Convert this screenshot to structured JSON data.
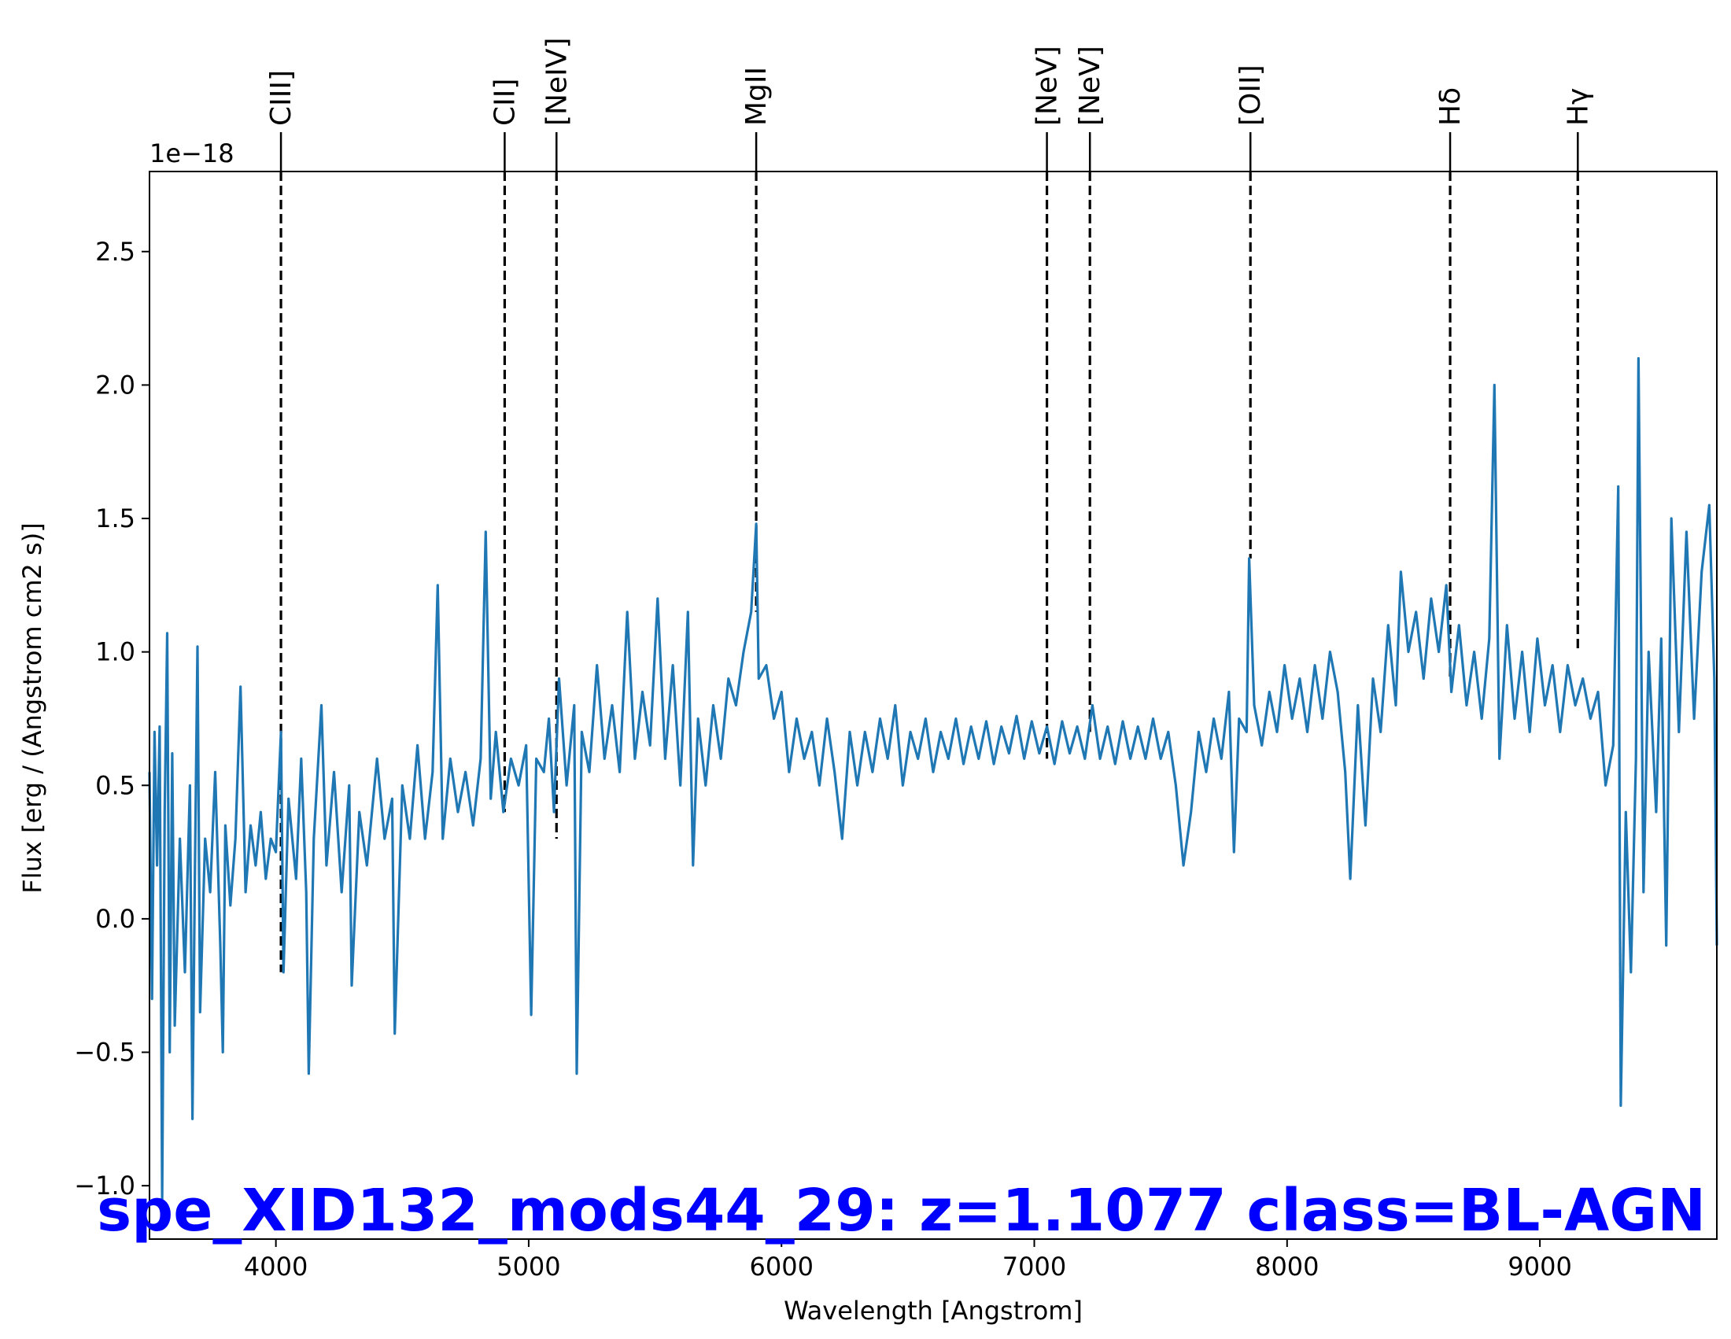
{
  "chart_data": {
    "type": "line",
    "title": "spe_XID132_mods44_29: z=1.1077 class=BL-AGN",
    "title_color": "#0000ff",
    "xlabel": "Wavelength [Angstrom]",
    "ylabel": "Flux [erg / (Angstrom cm2 s)]",
    "y_scale_label": "1e−18",
    "xlim": [
      3500,
      9700
    ],
    "ylim": [
      -1.2,
      2.8
    ],
    "x_ticks": [
      4000,
      5000,
      6000,
      7000,
      8000,
      9000
    ],
    "x_tick_labels": [
      "4000",
      "5000",
      "6000",
      "7000",
      "8000",
      "9000"
    ],
    "y_ticks": [
      -1.0,
      -0.5,
      0.0,
      0.5,
      1.0,
      1.5,
      2.0,
      2.5
    ],
    "y_tick_labels": [
      "−1.0",
      "−0.5",
      "0.0",
      "0.5",
      "1.0",
      "1.5",
      "2.0",
      "2.5"
    ],
    "grid": false,
    "series": [
      {
        "color": "#1f77b4",
        "points": [
          [
            3500,
            0.55
          ],
          [
            3510,
            -0.3
          ],
          [
            3520,
            0.7
          ],
          [
            3530,
            0.2
          ],
          [
            3540,
            0.72
          ],
          [
            3550,
            -1.05
          ],
          [
            3560,
            0.4
          ],
          [
            3570,
            1.07
          ],
          [
            3580,
            -0.5
          ],
          [
            3590,
            0.62
          ],
          [
            3600,
            -0.4
          ],
          [
            3620,
            0.3
          ],
          [
            3640,
            -0.2
          ],
          [
            3660,
            0.5
          ],
          [
            3670,
            -0.75
          ],
          [
            3680,
            0.2
          ],
          [
            3690,
            1.02
          ],
          [
            3700,
            -0.35
          ],
          [
            3720,
            0.3
          ],
          [
            3740,
            0.1
          ],
          [
            3760,
            0.55
          ],
          [
            3780,
            -0.1
          ],
          [
            3790,
            -0.5
          ],
          [
            3800,
            0.35
          ],
          [
            3820,
            0.05
          ],
          [
            3840,
            0.3
          ],
          [
            3860,
            0.87
          ],
          [
            3880,
            0.1
          ],
          [
            3900,
            0.35
          ],
          [
            3920,
            0.2
          ],
          [
            3940,
            0.4
          ],
          [
            3960,
            0.15
          ],
          [
            3980,
            0.3
          ],
          [
            4000,
            0.25
          ],
          [
            4020,
            0.7
          ],
          [
            4030,
            -0.2
          ],
          [
            4050,
            0.45
          ],
          [
            4080,
            0.15
          ],
          [
            4100,
            0.6
          ],
          [
            4120,
            0.1
          ],
          [
            4130,
            -0.58
          ],
          [
            4150,
            0.3
          ],
          [
            4180,
            0.8
          ],
          [
            4200,
            0.2
          ],
          [
            4230,
            0.55
          ],
          [
            4260,
            0.1
          ],
          [
            4290,
            0.5
          ],
          [
            4300,
            -0.25
          ],
          [
            4330,
            0.4
          ],
          [
            4360,
            0.2
          ],
          [
            4400,
            0.6
          ],
          [
            4430,
            0.3
          ],
          [
            4460,
            0.45
          ],
          [
            4470,
            -0.43
          ],
          [
            4500,
            0.5
          ],
          [
            4530,
            0.3
          ],
          [
            4560,
            0.65
          ],
          [
            4590,
            0.3
          ],
          [
            4620,
            0.55
          ],
          [
            4640,
            1.25
          ],
          [
            4660,
            0.3
          ],
          [
            4690,
            0.6
          ],
          [
            4720,
            0.4
          ],
          [
            4750,
            0.55
          ],
          [
            4780,
            0.35
          ],
          [
            4810,
            0.6
          ],
          [
            4830,
            1.45
          ],
          [
            4850,
            0.45
          ],
          [
            4870,
            0.7
          ],
          [
            4900,
            0.4
          ],
          [
            4930,
            0.6
          ],
          [
            4960,
            0.5
          ],
          [
            4990,
            0.65
          ],
          [
            5010,
            -0.36
          ],
          [
            5030,
            0.6
          ],
          [
            5060,
            0.55
          ],
          [
            5080,
            0.75
          ],
          [
            5100,
            0.4
          ],
          [
            5120,
            0.9
          ],
          [
            5150,
            0.5
          ],
          [
            5180,
            0.8
          ],
          [
            5190,
            -0.58
          ],
          [
            5210,
            0.7
          ],
          [
            5240,
            0.55
          ],
          [
            5270,
            0.95
          ],
          [
            5300,
            0.6
          ],
          [
            5330,
            0.8
          ],
          [
            5360,
            0.55
          ],
          [
            5390,
            1.15
          ],
          [
            5420,
            0.6
          ],
          [
            5450,
            0.85
          ],
          [
            5480,
            0.65
          ],
          [
            5510,
            1.2
          ],
          [
            5540,
            0.6
          ],
          [
            5570,
            0.95
          ],
          [
            5600,
            0.5
          ],
          [
            5630,
            1.15
          ],
          [
            5650,
            0.2
          ],
          [
            5670,
            0.75
          ],
          [
            5700,
            0.5
          ],
          [
            5730,
            0.8
          ],
          [
            5760,
            0.6
          ],
          [
            5790,
            0.9
          ],
          [
            5820,
            0.8
          ],
          [
            5850,
            1.0
          ],
          [
            5880,
            1.15
          ],
          [
            5900,
            1.48
          ],
          [
            5910,
            0.9
          ],
          [
            5940,
            0.95
          ],
          [
            5970,
            0.75
          ],
          [
            6000,
            0.85
          ],
          [
            6030,
            0.55
          ],
          [
            6060,
            0.75
          ],
          [
            6090,
            0.6
          ],
          [
            6120,
            0.7
          ],
          [
            6150,
            0.5
          ],
          [
            6180,
            0.75
          ],
          [
            6210,
            0.55
          ],
          [
            6240,
            0.3
          ],
          [
            6270,
            0.7
          ],
          [
            6300,
            0.5
          ],
          [
            6330,
            0.7
          ],
          [
            6360,
            0.55
          ],
          [
            6390,
            0.75
          ],
          [
            6420,
            0.6
          ],
          [
            6450,
            0.8
          ],
          [
            6480,
            0.5
          ],
          [
            6510,
            0.7
          ],
          [
            6540,
            0.6
          ],
          [
            6570,
            0.75
          ],
          [
            6600,
            0.55
          ],
          [
            6630,
            0.7
          ],
          [
            6660,
            0.6
          ],
          [
            6690,
            0.75
          ],
          [
            6720,
            0.58
          ],
          [
            6750,
            0.72
          ],
          [
            6780,
            0.6
          ],
          [
            6810,
            0.74
          ],
          [
            6840,
            0.58
          ],
          [
            6870,
            0.72
          ],
          [
            6900,
            0.62
          ],
          [
            6930,
            0.76
          ],
          [
            6960,
            0.6
          ],
          [
            6990,
            0.74
          ],
          [
            7020,
            0.62
          ],
          [
            7050,
            0.72
          ],
          [
            7080,
            0.58
          ],
          [
            7110,
            0.74
          ],
          [
            7140,
            0.62
          ],
          [
            7170,
            0.72
          ],
          [
            7200,
            0.6
          ],
          [
            7230,
            0.8
          ],
          [
            7260,
            0.6
          ],
          [
            7290,
            0.72
          ],
          [
            7320,
            0.58
          ],
          [
            7350,
            0.74
          ],
          [
            7380,
            0.6
          ],
          [
            7410,
            0.72
          ],
          [
            7440,
            0.6
          ],
          [
            7470,
            0.75
          ],
          [
            7500,
            0.6
          ],
          [
            7530,
            0.7
          ],
          [
            7560,
            0.5
          ],
          [
            7590,
            0.2
          ],
          [
            7620,
            0.4
          ],
          [
            7650,
            0.7
          ],
          [
            7680,
            0.55
          ],
          [
            7710,
            0.75
          ],
          [
            7740,
            0.6
          ],
          [
            7770,
            0.85
          ],
          [
            7790,
            0.25
          ],
          [
            7810,
            0.75
          ],
          [
            7840,
            0.7
          ],
          [
            7850,
            1.35
          ],
          [
            7870,
            0.8
          ],
          [
            7900,
            0.65
          ],
          [
            7930,
            0.85
          ],
          [
            7960,
            0.7
          ],
          [
            7990,
            0.95
          ],
          [
            8020,
            0.75
          ],
          [
            8050,
            0.9
          ],
          [
            8080,
            0.7
          ],
          [
            8110,
            0.95
          ],
          [
            8140,
            0.75
          ],
          [
            8170,
            1.0
          ],
          [
            8200,
            0.85
          ],
          [
            8230,
            0.55
          ],
          [
            8250,
            0.15
          ],
          [
            8280,
            0.8
          ],
          [
            8310,
            0.35
          ],
          [
            8340,
            0.9
          ],
          [
            8370,
            0.7
          ],
          [
            8400,
            1.1
          ],
          [
            8430,
            0.8
          ],
          [
            8450,
            1.3
          ],
          [
            8480,
            1.0
          ],
          [
            8510,
            1.15
          ],
          [
            8540,
            0.9
          ],
          [
            8570,
            1.2
          ],
          [
            8600,
            1.0
          ],
          [
            8630,
            1.25
          ],
          [
            8650,
            0.85
          ],
          [
            8680,
            1.1
          ],
          [
            8710,
            0.8
          ],
          [
            8740,
            1.0
          ],
          [
            8770,
            0.75
          ],
          [
            8800,
            1.05
          ],
          [
            8820,
            2.0
          ],
          [
            8840,
            0.6
          ],
          [
            8870,
            1.1
          ],
          [
            8900,
            0.75
          ],
          [
            8930,
            1.0
          ],
          [
            8960,
            0.7
          ],
          [
            8990,
            1.05
          ],
          [
            9020,
            0.8
          ],
          [
            9050,
            0.95
          ],
          [
            9080,
            0.7
          ],
          [
            9110,
            0.95
          ],
          [
            9140,
            0.8
          ],
          [
            9170,
            0.9
          ],
          [
            9200,
            0.75
          ],
          [
            9230,
            0.85
          ],
          [
            9260,
            0.5
          ],
          [
            9290,
            0.65
          ],
          [
            9310,
            1.62
          ],
          [
            9320,
            -0.7
          ],
          [
            9340,
            0.4
          ],
          [
            9360,
            -0.2
          ],
          [
            9380,
            0.6
          ],
          [
            9390,
            2.1
          ],
          [
            9410,
            0.1
          ],
          [
            9430,
            1.0
          ],
          [
            9460,
            0.4
          ],
          [
            9480,
            1.05
          ],
          [
            9500,
            -0.1
          ],
          [
            9520,
            1.5
          ],
          [
            9550,
            0.7
          ],
          [
            9580,
            1.45
          ],
          [
            9610,
            0.75
          ],
          [
            9640,
            1.3
          ],
          [
            9670,
            1.55
          ],
          [
            9690,
            0.9
          ],
          [
            9700,
            -0.1
          ]
        ]
      }
    ],
    "emission_lines": [
      {
        "label": "CIII]",
        "x": 4020,
        "y_top": 0.72,
        "y_bottom": -0.2
      },
      {
        "label": "CII]",
        "x": 4905,
        "y_top": 0.68,
        "y_bottom": 0.4
      },
      {
        "label": "[NeIV]",
        "x": 5110,
        "y_top": 0.82,
        "y_bottom": 0.3
      },
      {
        "label": "MgII",
        "x": 5900,
        "y_top": 1.48,
        "y_bottom": 1.15
      },
      {
        "label": "[NeV]",
        "x": 7050,
        "y_top": 0.86,
        "y_bottom": 0.6
      },
      {
        "label": "[NeV]",
        "x": 7220,
        "y_top": 0.92,
        "y_bottom": 0.7
      },
      {
        "label": "[OII]",
        "x": 7855,
        "y_top": 1.45,
        "y_bottom": 1.35
      },
      {
        "label": "Hδ",
        "x": 8645,
        "y_top": 1.4,
        "y_bottom": 0.9
      },
      {
        "label": "Hγ",
        "x": 9150,
        "y_top": 1.15,
        "y_bottom": 1.0
      }
    ]
  }
}
